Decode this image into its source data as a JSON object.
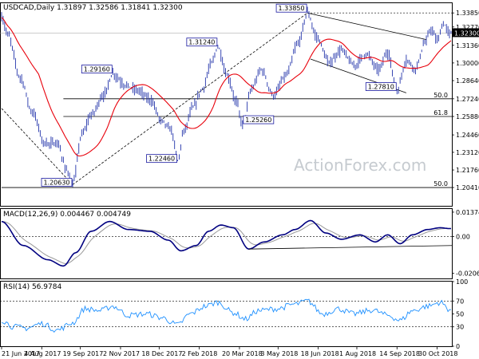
{
  "chart_data": [
    {
      "panel": "price",
      "type": "bar",
      "header": "USDCAD,Daily  1.31897 1.32586 1.31841 1.32300",
      "watermark": "ActionForex.com",
      "ylim": [
        1.19,
        1.346
      ],
      "y_ticks": [
        "1.33850",
        "1.32770",
        "1.31360",
        "1.30000",
        "1.28640",
        "1.27240",
        "1.25880",
        "1.24460",
        "1.23120",
        "1.21760",
        "1.20410"
      ],
      "y_tick_values": [
        1.3385,
        1.3277,
        1.3136,
        1.3,
        1.2864,
        1.2724,
        1.2588,
        1.2446,
        1.2312,
        1.2176,
        1.2041
      ],
      "x_ticks": [
        "21 Jun 2017",
        "4 Aug 2017",
        "19 Sep 2017",
        "2 Nov 2017",
        "18 Dec 2017",
        "2 Feb 2018",
        "20 Mar 2018",
        "3 May 2018",
        "18 Jun 2018",
        "1 Aug 2018",
        "14 Sep 2018",
        "30 Oct 2018"
      ],
      "last_price": 1.323,
      "last_price_label": "1.32300",
      "ma_color": "#e8000b",
      "bar_color": "#2233aa",
      "swings": [
        {
          "i": 0,
          "v": 1.335
        },
        {
          "i": 4,
          "v": 1.322
        },
        {
          "i": 12,
          "v": 1.289
        },
        {
          "i": 20,
          "v": 1.262
        },
        {
          "i": 28,
          "v": 1.238
        },
        {
          "i": 36,
          "v": 1.238
        },
        {
          "i": 42,
          "v": 1.218
        },
        {
          "i": 46,
          "v": 1.2063
        },
        {
          "i": 52,
          "v": 1.245
        },
        {
          "i": 58,
          "v": 1.26
        },
        {
          "i": 66,
          "v": 1.275
        },
        {
          "i": 72,
          "v": 1.2916
        },
        {
          "i": 80,
          "v": 1.283
        },
        {
          "i": 88,
          "v": 1.279
        },
        {
          "i": 96,
          "v": 1.272
        },
        {
          "i": 104,
          "v": 1.255
        },
        {
          "i": 110,
          "v": 1.248
        },
        {
          "i": 114,
          "v": 1.2246
        },
        {
          "i": 118,
          "v": 1.248
        },
        {
          "i": 124,
          "v": 1.266
        },
        {
          "i": 130,
          "v": 1.28
        },
        {
          "i": 136,
          "v": 1.3
        },
        {
          "i": 140,
          "v": 1.3124
        },
        {
          "i": 146,
          "v": 1.29
        },
        {
          "i": 152,
          "v": 1.27
        },
        {
          "i": 156,
          "v": 1.2526
        },
        {
          "i": 162,
          "v": 1.28
        },
        {
          "i": 168,
          "v": 1.295
        },
        {
          "i": 176,
          "v": 1.275
        },
        {
          "i": 184,
          "v": 1.29
        },
        {
          "i": 192,
          "v": 1.315
        },
        {
          "i": 198,
          "v": 1.3385
        },
        {
          "i": 204,
          "v": 1.32
        },
        {
          "i": 212,
          "v": 1.3
        },
        {
          "i": 220,
          "v": 1.31
        },
        {
          "i": 228,
          "v": 1.298
        },
        {
          "i": 236,
          "v": 1.307
        },
        {
          "i": 244,
          "v": 1.295
        },
        {
          "i": 250,
          "v": 1.308
        },
        {
          "i": 256,
          "v": 1.2781
        },
        {
          "i": 262,
          "v": 1.302
        },
        {
          "i": 268,
          "v": 1.296
        },
        {
          "i": 274,
          "v": 1.315
        },
        {
          "i": 278,
          "v": 1.326
        },
        {
          "i": 282,
          "v": 1.317
        },
        {
          "i": 286,
          "v": 1.33
        },
        {
          "i": 290,
          "v": 1.323
        }
      ],
      "callouts": [
        {
          "text": "1.33850",
          "i": 198,
          "v": 1.3385,
          "side": "left"
        },
        {
          "text": "1.31240",
          "i": 140,
          "v": 1.3124,
          "side": "left"
        },
        {
          "text": "1.29160",
          "i": 72,
          "v": 1.2916,
          "side": "left"
        },
        {
          "text": "1.27810",
          "i": 256,
          "v": 1.2781,
          "side": "left"
        },
        {
          "text": "1.25260",
          "i": 156,
          "v": 1.2526,
          "side": "right"
        },
        {
          "text": "1.22460",
          "i": 114,
          "v": 1.2246,
          "side": "left"
        },
        {
          "text": "1.20630",
          "i": 46,
          "v": 1.2063,
          "side": "left"
        }
      ],
      "fib_levels": [
        {
          "label": "50.0",
          "v": 1.2724,
          "from_i": 40
        },
        {
          "label": "61.8",
          "v": 1.2588,
          "from_i": 40
        },
        {
          "label": "50.0",
          "v": 1.2041,
          "from_i": 0
        }
      ],
      "trendlines": [
        {
          "i1": 0,
          "v1": 1.265,
          "i2": 46,
          "v2": 1.2063
        },
        {
          "i1": 46,
          "v1": 1.2063,
          "i2": 198,
          "v2": 1.3385
        },
        {
          "i1": 198,
          "v1": 1.3385,
          "i2": 275,
          "v2": 1.318
        },
        {
          "i1": 200,
          "v1": 1.303,
          "i2": 262,
          "v2": 1.277
        }
      ]
    },
    {
      "panel": "macd",
      "type": "line",
      "header": "MACD(12,26,9) 0.004467 0.004749",
      "ylim": [
        -0.0235,
        0.0155
      ],
      "y_ticks": [
        "0.013745",
        "0.00",
        "-0.020652"
      ],
      "y_tick_values": [
        0.013745,
        0.0,
        -0.020652
      ],
      "macd_color": "#000080",
      "signal_color": "#999999",
      "swings": [
        {
          "i": 0,
          "v": 0.0085
        },
        {
          "i": 14,
          "v": -0.005
        },
        {
          "i": 30,
          "v": -0.013
        },
        {
          "i": 40,
          "v": -0.0165
        },
        {
          "i": 48,
          "v": -0.009
        },
        {
          "i": 58,
          "v": 0.003
        },
        {
          "i": 70,
          "v": 0.0085
        },
        {
          "i": 82,
          "v": 0.004
        },
        {
          "i": 96,
          "v": 0.003
        },
        {
          "i": 108,
          "v": -0.002
        },
        {
          "i": 116,
          "v": -0.008
        },
        {
          "i": 126,
          "v": -0.005
        },
        {
          "i": 134,
          "v": 0.003
        },
        {
          "i": 142,
          "v": 0.0065
        },
        {
          "i": 150,
          "v": 0.005
        },
        {
          "i": 160,
          "v": -0.007
        },
        {
          "i": 170,
          "v": -0.003
        },
        {
          "i": 182,
          "v": 0.001
        },
        {
          "i": 190,
          "v": 0.004
        },
        {
          "i": 200,
          "v": 0.009
        },
        {
          "i": 210,
          "v": 0.002
        },
        {
          "i": 220,
          "v": -0.0015
        },
        {
          "i": 232,
          "v": 0.001
        },
        {
          "i": 242,
          "v": -0.003
        },
        {
          "i": 250,
          "v": 0.001
        },
        {
          "i": 258,
          "v": -0.004
        },
        {
          "i": 266,
          "v": 0.001
        },
        {
          "i": 276,
          "v": 0.004
        },
        {
          "i": 284,
          "v": 0.005
        },
        {
          "i": 290,
          "v": 0.0045
        }
      ],
      "trendline": {
        "i1": 160,
        "v1": -0.007,
        "i2": 292,
        "v2": -0.005
      }
    },
    {
      "panel": "rsi",
      "type": "line",
      "header": "RSI(14) 56.9784",
      "ylim": [
        0,
        100
      ],
      "y_ticks": [
        "100",
        "70",
        "50",
        "30",
        "0"
      ],
      "y_tick_values": [
        100,
        70,
        50,
        30,
        0
      ],
      "levels": [
        70,
        30
      ],
      "rsi_color": "#1e90ff",
      "swings": [
        {
          "i": 0,
          "v": 40
        },
        {
          "i": 8,
          "v": 30
        },
        {
          "i": 16,
          "v": 28
        },
        {
          "i": 26,
          "v": 35
        },
        {
          "i": 36,
          "v": 25
        },
        {
          "i": 46,
          "v": 36
        },
        {
          "i": 54,
          "v": 58
        },
        {
          "i": 64,
          "v": 55
        },
        {
          "i": 72,
          "v": 62
        },
        {
          "i": 82,
          "v": 48
        },
        {
          "i": 94,
          "v": 50
        },
        {
          "i": 104,
          "v": 44
        },
        {
          "i": 114,
          "v": 33
        },
        {
          "i": 122,
          "v": 50
        },
        {
          "i": 132,
          "v": 62
        },
        {
          "i": 140,
          "v": 68
        },
        {
          "i": 150,
          "v": 52
        },
        {
          "i": 158,
          "v": 42
        },
        {
          "i": 166,
          "v": 55
        },
        {
          "i": 178,
          "v": 58
        },
        {
          "i": 190,
          "v": 65
        },
        {
          "i": 198,
          "v": 70
        },
        {
          "i": 208,
          "v": 50
        },
        {
          "i": 218,
          "v": 58
        },
        {
          "i": 228,
          "v": 50
        },
        {
          "i": 240,
          "v": 56
        },
        {
          "i": 250,
          "v": 48
        },
        {
          "i": 258,
          "v": 40
        },
        {
          "i": 266,
          "v": 55
        },
        {
          "i": 276,
          "v": 62
        },
        {
          "i": 284,
          "v": 68
        },
        {
          "i": 290,
          "v": 57
        }
      ]
    }
  ]
}
